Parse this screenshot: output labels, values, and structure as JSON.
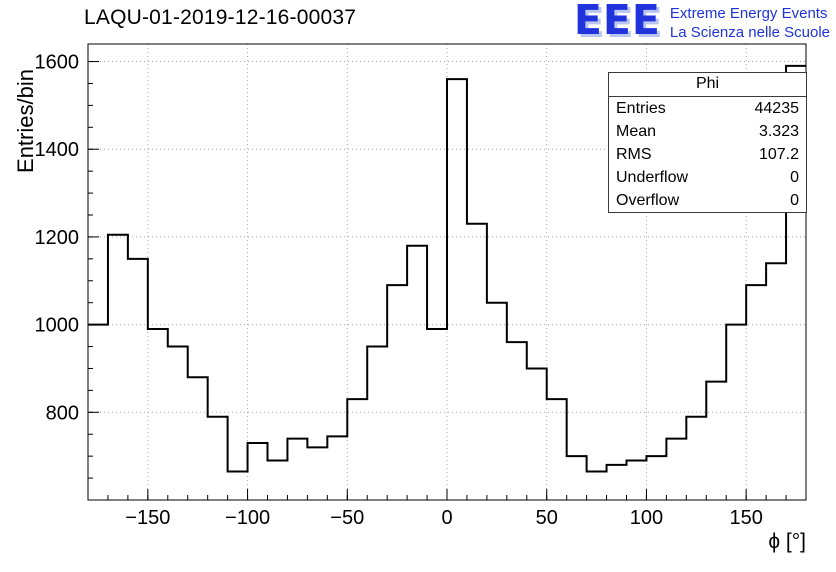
{
  "header": {
    "title": "LAQU-01-2019-12-16-00037",
    "logo": {
      "acronym": "EEE",
      "line1": "Extreme Energy Events",
      "line2": "La Scienza nelle Scuole",
      "color": "#2033dd",
      "shadow_color": "#b9c6f0"
    }
  },
  "stats": {
    "title": "Phi",
    "rows": [
      {
        "label": "Entries",
        "value": "44235"
      },
      {
        "label": "Mean",
        "value": "3.323"
      },
      {
        "label": "RMS",
        "value": "107.2"
      },
      {
        "label": "Underflow",
        "value": "0"
      },
      {
        "label": "Overflow",
        "value": "0"
      }
    ]
  },
  "chart_data": {
    "type": "bar",
    "subtype": "step-histogram",
    "title": "LAQU-01-2019-12-16-00037",
    "xlabel": "ϕ [°]",
    "ylabel": "Entries/bin",
    "xlim": [
      -180,
      180
    ],
    "ylim": [
      600,
      1640
    ],
    "xticks": [
      -150,
      -100,
      -50,
      0,
      50,
      100,
      150
    ],
    "yticks": [
      800,
      1000,
      1200,
      1400,
      1600
    ],
    "x_minor_step": 10,
    "y_minor_step": 50,
    "grid": true,
    "bin_width": 10,
    "bin_start": -180,
    "values": [
      1000,
      1205,
      1150,
      990,
      950,
      880,
      790,
      665,
      730,
      690,
      740,
      720,
      745,
      830,
      950,
      1090,
      1180,
      990,
      1560,
      1230,
      1050,
      960,
      900,
      830,
      700,
      665,
      680,
      690,
      700,
      740,
      790,
      870,
      1000,
      1090,
      1140,
      1590
    ],
    "line_color": "#000000",
    "grid_color": "#a8a8a8"
  }
}
